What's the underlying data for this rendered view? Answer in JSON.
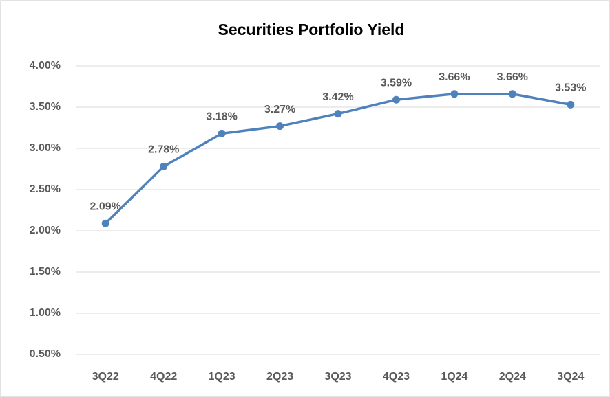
{
  "chart_data": {
    "type": "line",
    "title": "Securities Portfolio Yield",
    "categories": [
      "3Q22",
      "4Q22",
      "1Q23",
      "2Q23",
      "3Q23",
      "4Q23",
      "1Q24",
      "2Q24",
      "3Q24"
    ],
    "series": [
      {
        "name": "Securities Portfolio Yield",
        "color": "#4f81bd",
        "values": [
          2.09,
          2.78,
          3.18,
          3.27,
          3.42,
          3.59,
          3.66,
          3.66,
          3.53
        ],
        "value_labels": [
          "2.09%",
          "2.78%",
          "3.18%",
          "3.27%",
          "3.42%",
          "3.59%",
          "3.66%",
          "3.66%",
          "3.53%"
        ]
      }
    ],
    "ylim": [
      0.5,
      4.0
    ],
    "yticks": [
      {
        "value": 0.5,
        "label": "0.50%"
      },
      {
        "value": 1.0,
        "label": "1.00%"
      },
      {
        "value": 1.5,
        "label": "1.50%"
      },
      {
        "value": 2.0,
        "label": "2.00%"
      },
      {
        "value": 2.5,
        "label": "2.50%"
      },
      {
        "value": 3.0,
        "label": "3.00%"
      },
      {
        "value": 3.5,
        "label": "3.50%"
      },
      {
        "value": 4.0,
        "label": "4.00%"
      }
    ],
    "grid": true
  }
}
